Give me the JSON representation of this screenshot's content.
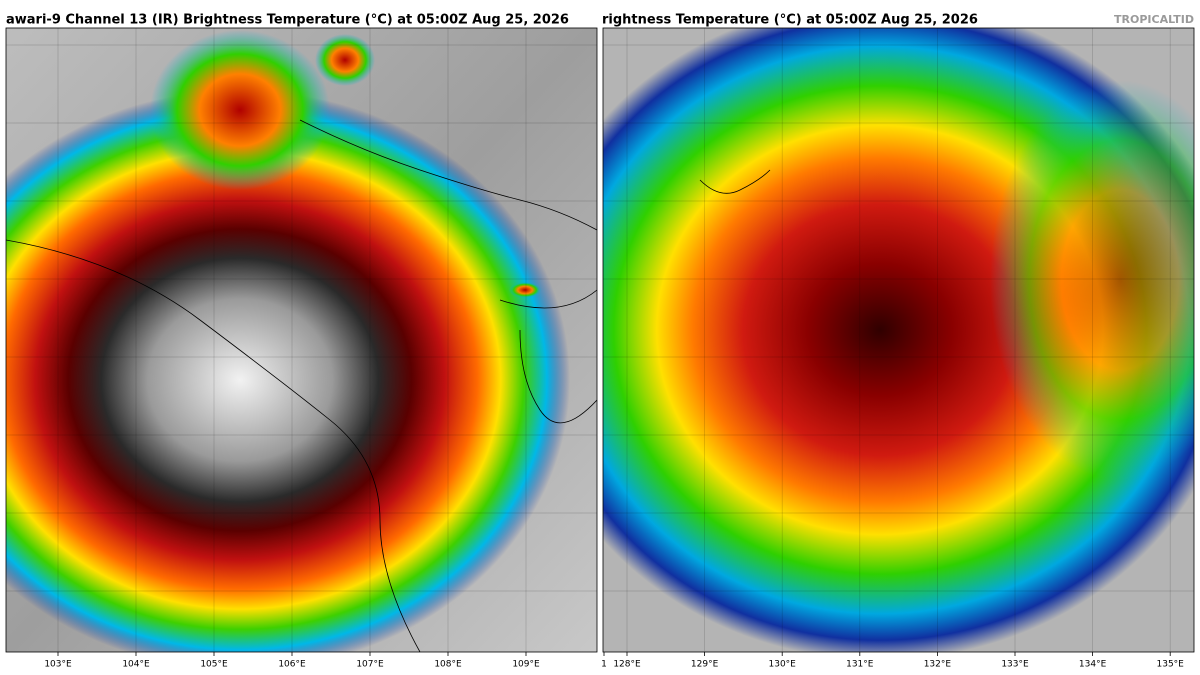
{
  "panels": [
    {
      "title": "awari-9 Channel 13 (IR) Brightness Temperature (°C) at 05:00Z Aug 25, 2026",
      "ticks": [
        "103°E",
        "104°E",
        "105°E",
        "106°E",
        "107°E",
        "108°E",
        "109°E",
        "1"
      ]
    },
    {
      "title": "rightness Temperature (°C) at 05:00Z Aug 25, 2026",
      "watermark": "TROPICALTID",
      "ticks": [
        "128°E",
        "129°E",
        "130°E",
        "131°E",
        "132°E",
        "133°E",
        "134°E",
        "135°E"
      ]
    }
  ]
}
